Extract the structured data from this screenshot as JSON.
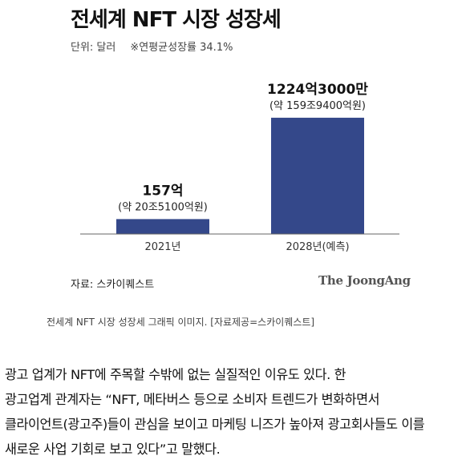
{
  "header": {
    "title": "전세계 NFT 시장 성장세",
    "unit": "단위: 달러",
    "cagr_note": "※연평균성장률 34.1%"
  },
  "chart_data": {
    "type": "bar",
    "categories": [
      "2021년",
      "2028년(예측)"
    ],
    "values": [
      157,
      1224.3
    ],
    "unit_note": "억 달러",
    "data_labels": [
      {
        "main": "157억",
        "sub": "(약 20조5100억원)"
      },
      {
        "main": "1224억3000만",
        "sub": "(약 159조9400억원)"
      }
    ],
    "bar_color": "#34488a",
    "ylim": [
      0,
      1350
    ],
    "grid": false
  },
  "source": "자료: 스카이퀘스트",
  "logo_text": "The JoongAng",
  "caption": "전세계 NFT 시장 성장세 그래픽 이미지. [자료제공=스카이퀘스트]",
  "article": {
    "lines": [
      "광고 업계가 NFT에 주목할 수밖에 없는 실질적인 이유도 있다. 한",
      "광고업계 관계자는 “NFT, 메타버스 등으로 소비자 트렌드가 변화하면서",
      "클라이언트(광고주)들이 관심을 보이고 마케팅 니즈가 높아져 광고회사들도 이를",
      "새로운 사업 기회로 보고 있다”고 말했다."
    ]
  }
}
